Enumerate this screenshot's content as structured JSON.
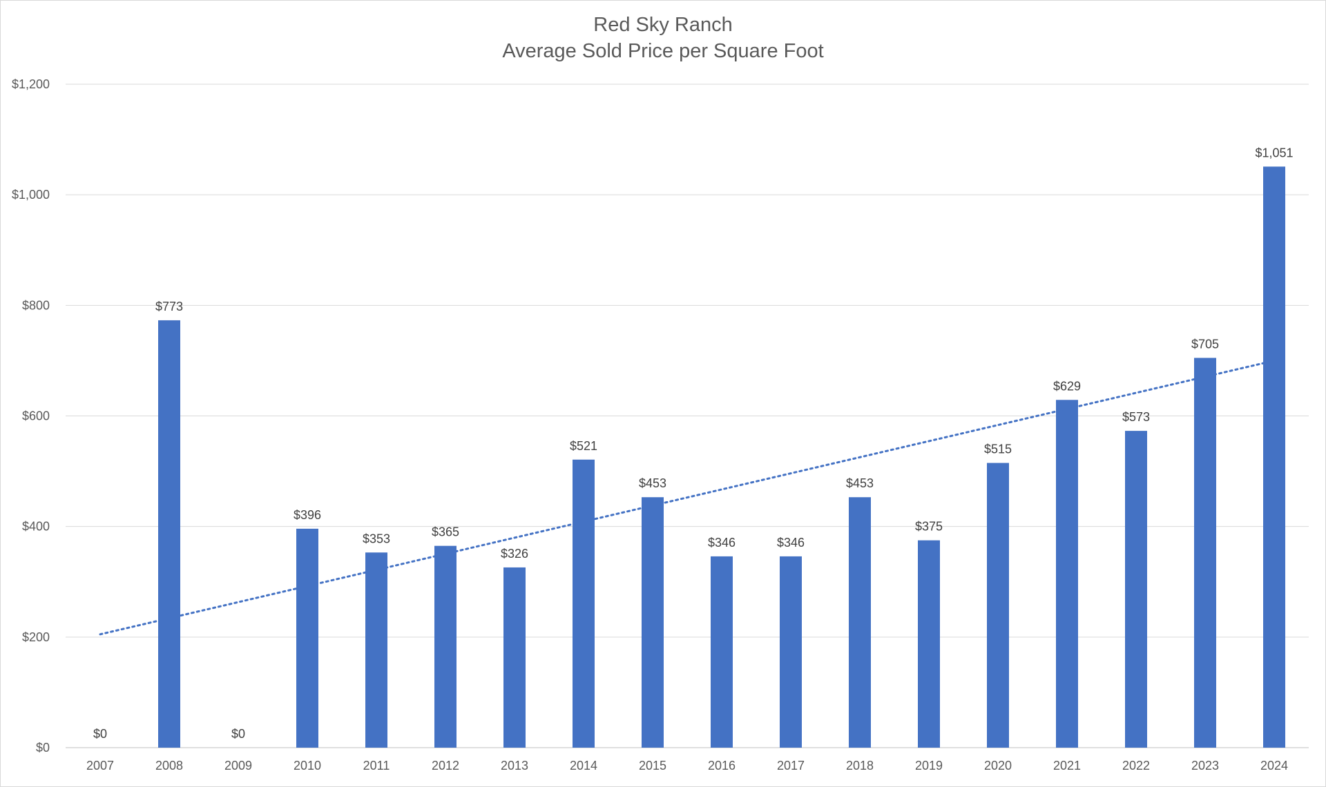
{
  "chart_data": {
    "type": "bar",
    "title": "Red Sky Ranch",
    "subtitle": "Average Sold Price per Square Foot",
    "xlabel": "",
    "ylabel": "",
    "categories": [
      "2007",
      "2008",
      "2009",
      "2010",
      "2011",
      "2012",
      "2013",
      "2014",
      "2015",
      "2016",
      "2017",
      "2018",
      "2019",
      "2020",
      "2021",
      "2022",
      "2023",
      "2024"
    ],
    "values": [
      0,
      773,
      0,
      396,
      353,
      365,
      326,
      521,
      453,
      346,
      346,
      453,
      375,
      515,
      629,
      573,
      705,
      1051
    ],
    "data_labels": [
      "$0",
      "$773",
      "$0",
      "$396",
      "$353",
      "$365",
      "$326",
      "$521",
      "$453",
      "$346",
      "$346",
      "$453",
      "$375",
      "$515",
      "$629",
      "$573",
      "$705",
      "$1,051"
    ],
    "ylim": [
      0,
      1200
    ],
    "yticks": [
      0,
      200,
      400,
      600,
      800,
      1000,
      1200
    ],
    "ytick_labels": [
      "$0",
      "$200",
      "$400",
      "$600",
      "$800",
      "$1,000",
      "$1,200"
    ],
    "grid": true,
    "trendline": {
      "type": "linear",
      "style": "dotted",
      "start_value": 205,
      "end_value": 700
    },
    "colors": {
      "bar": "#4472c4",
      "trendline": "#4472c4",
      "grid": "#d9d9d9",
      "text": "#595959"
    }
  }
}
